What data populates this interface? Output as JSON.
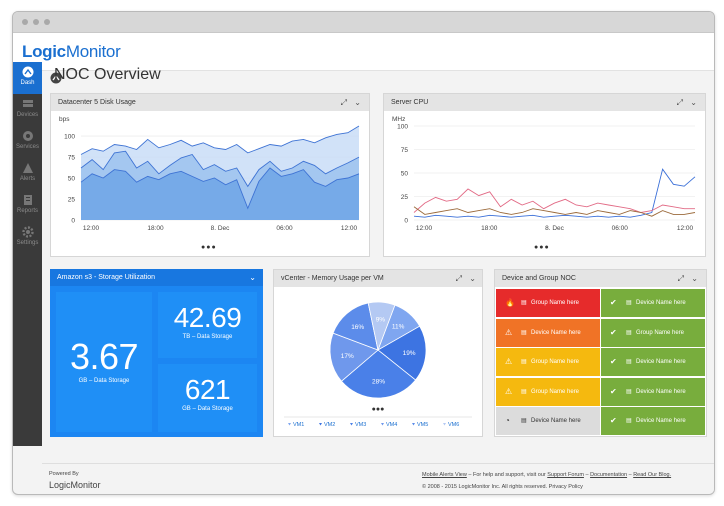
{
  "brand": {
    "logo_part1": "Logic",
    "logo_part2": "Monitor",
    "powered_by": "Powered By",
    "footer_logo": "LogicMonitor"
  },
  "sidebar": {
    "items": [
      {
        "label": "Dash",
        "icon": "dashboard-icon",
        "active": true
      },
      {
        "label": "Devices",
        "icon": "devices-icon"
      },
      {
        "label": "Services",
        "icon": "services-icon"
      },
      {
        "label": "Alerts",
        "icon": "alerts-icon"
      },
      {
        "label": "Reports",
        "icon": "reports-icon"
      },
      {
        "label": "Settings",
        "icon": "settings-icon"
      }
    ]
  },
  "page": {
    "title": "NOC Overview"
  },
  "widgets": {
    "disk": {
      "title": "Datacenter 5 Disk Usage",
      "unit": "bps"
    },
    "cpu": {
      "title": "Server CPU",
      "unit": "MHz"
    },
    "storage": {
      "title": "Amazon s3 - Storage Utilization",
      "main_value": "3.67",
      "main_label": "GB – Data Storage",
      "tb_value": "42.69",
      "tb_label": "TB – Data Storage",
      "gb_value": "621",
      "gb_label": "GB – Data Storage"
    },
    "vcenter": {
      "title": "vCenter - Memory Usage per VM"
    },
    "noc": {
      "title": "Device and Group NOC"
    }
  },
  "chart_data": [
    {
      "type": "area",
      "title": "Datacenter 5 Disk Usage",
      "ylabel": "bps",
      "ylim": [
        0,
        112
      ],
      "yticks": [
        0,
        25,
        50,
        75,
        100
      ],
      "xticks": [
        "12:00",
        "18:00",
        "8. Dec",
        "06:00",
        "12:00"
      ],
      "series": [
        {
          "values": [
            78,
            85,
            82,
            90,
            88,
            84,
            96,
            86,
            90,
            95,
            88,
            92,
            86,
            84,
            90,
            80,
            85,
            90,
            88,
            94,
            96,
            92,
            98,
            102,
            104,
            112
          ]
        },
        {
          "values": [
            62,
            72,
            60,
            80,
            82,
            62,
            70,
            55,
            65,
            74,
            78,
            60,
            66,
            58,
            62,
            40,
            60,
            70,
            58,
            62,
            70,
            65,
            55,
            62,
            68,
            75
          ]
        },
        {
          "values": [
            45,
            55,
            50,
            60,
            58,
            45,
            52,
            48,
            55,
            58,
            52,
            46,
            50,
            42,
            48,
            14,
            46,
            62,
            52,
            55,
            60,
            45,
            40,
            48,
            50,
            55
          ]
        }
      ],
      "colors": [
        "#c9ddf7",
        "#9cc2ef",
        "#6fa5e6"
      ]
    },
    {
      "type": "line",
      "title": "Server CPU",
      "ylabel": "MHz",
      "ylim": [
        0,
        100
      ],
      "yticks": [
        0,
        25,
        50,
        75,
        100
      ],
      "xticks": [
        "12:00",
        "18:00",
        "8. Dec",
        "06:00",
        "12:00"
      ],
      "series": [
        {
          "values": [
            4,
            3,
            5,
            4,
            3,
            4,
            3,
            5,
            4,
            3,
            4,
            5,
            3,
            4,
            5,
            4,
            3,
            4,
            3,
            4,
            3,
            5,
            8,
            54,
            38,
            36,
            46
          ]
        },
        {
          "values": [
            8,
            18,
            24,
            20,
            22,
            33,
            26,
            30,
            14,
            22,
            16,
            20,
            12,
            18,
            22,
            16,
            14,
            18,
            16,
            14,
            12,
            8,
            10,
            16,
            14,
            12,
            12
          ]
        },
        {
          "values": [
            14,
            6,
            8,
            10,
            12,
            8,
            10,
            12,
            8,
            6,
            8,
            12,
            10,
            8,
            6,
            8,
            6,
            10,
            8,
            6,
            10,
            8,
            4,
            10,
            6,
            6,
            8
          ]
        }
      ],
      "colors": [
        "#3a6fd8",
        "#e26b86",
        "#9b6a3b"
      ]
    },
    {
      "type": "pie",
      "title": "vCenter - Memory Usage per VM",
      "categories": [
        "VM1",
        "VM2",
        "VM3",
        "VM4",
        "VM5",
        "VM6"
      ],
      "values": [
        11,
        19,
        28,
        17,
        16,
        9
      ],
      "labels": [
        "11%",
        "19%",
        "28%",
        "17%",
        "16%",
        "9%"
      ],
      "colors": [
        "#7fa6f0",
        "#3d74e2",
        "#4a80e8",
        "#6f98ec",
        "#5c8cea",
        "#b4c9f3"
      ]
    }
  ],
  "noc_rows": [
    {
      "left": {
        "label": "Group Name here",
        "icon": "fire-icon",
        "color": "#e62b2b"
      },
      "right": {
        "label": "Device Name here",
        "icon": "check-icon",
        "color": "#78ad3d"
      }
    },
    {
      "left": {
        "label": "Device Name here",
        "icon": "warning-icon",
        "color": "#f07326"
      },
      "right": {
        "label": "Group Name here",
        "icon": "check-icon",
        "color": "#78ad3d"
      }
    },
    {
      "left": {
        "label": "Group Name here",
        "icon": "warning-icon",
        "color": "#f5b90f"
      },
      "right": {
        "label": "Device Name here",
        "icon": "check-icon",
        "color": "#78ad3d"
      }
    },
    {
      "left": {
        "label": "Group Name here",
        "icon": "warning-icon",
        "color": "#f5b90f"
      },
      "right": {
        "label": "Device Name here",
        "icon": "check-icon",
        "color": "#78ad3d"
      }
    },
    {
      "left": {
        "label": "Device Name here",
        "icon": "clock-icon",
        "color": "#dcdcdc"
      },
      "right": {
        "label": "Device Name here",
        "icon": "check-icon",
        "color": "#78ad3d"
      }
    }
  ],
  "footer": {
    "line1_link1": "Mobile Alerts View",
    "line1_text1": " – For help and support, visit our ",
    "line1_link2": "Support Forum",
    "line1_sep1": " – ",
    "line1_link3": "Documentation",
    "line1_sep2": " – ",
    "line1_link4": "Read Our Blog.",
    "line2": "© 2008 - 2015 LogicMonitor Inc. All rights reserved. Privacy Policy"
  }
}
